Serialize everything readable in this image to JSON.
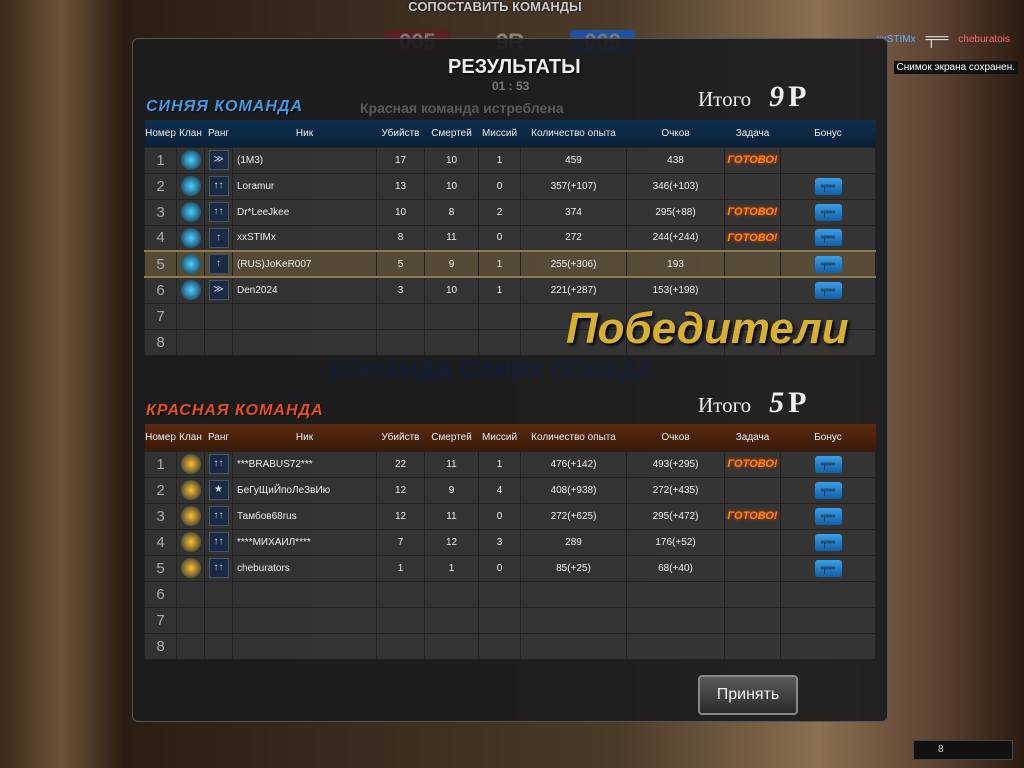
{
  "hud": {
    "match_title": "СОПОСТАВИТЬ КОМАНДЫ",
    "score_red": "005",
    "rounds": "9R",
    "score_blue": "009",
    "timer": "01 : 53",
    "killfeed_killer": "xxSTIMx",
    "killfeed_victim": "cheburatois",
    "notice": "Снимок экрана сохранен.",
    "bottom_counter": "8"
  },
  "panel": {
    "title": "РЕЗУЛЬТАТЫ",
    "eliminated_text": "Красная команда истреблена",
    "winner_text": "Победители",
    "banner_text": "КОМАНДА СИНИХ ПОБЕДА",
    "accept_label": "Принять",
    "ready_label": "ГОТОВО!"
  },
  "columns": [
    "Номер",
    "Клан",
    "Ранг",
    "Ник",
    "Убийств",
    "Смертей",
    "Миссий",
    "Количество опыта",
    "Очков",
    "Задача",
    "Бонус"
  ],
  "blue_team": {
    "name": "СИНЯЯ КОМАНДА",
    "total_label": "Итого",
    "total_value": "9",
    "total_unit": "Р",
    "color": "#3a9ee8",
    "rows": [
      {
        "n": "1",
        "nick": "(1M3)",
        "kills": "17",
        "deaths": "10",
        "missions": "1",
        "exp": "459",
        "points": "438",
        "task": true,
        "bonus": false,
        "rank": "chevron"
      },
      {
        "n": "2",
        "nick": "Loramur",
        "kills": "13",
        "deaths": "10",
        "missions": "0",
        "exp": "357(+107)",
        "points": "346(+103)",
        "task": false,
        "bonus": true,
        "rank": "arrows"
      },
      {
        "n": "3",
        "nick": "Dr*LeeJkee",
        "kills": "10",
        "deaths": "8",
        "missions": "2",
        "exp": "374",
        "points": "295(+88)",
        "task": true,
        "bonus": true,
        "rank": "arrows"
      },
      {
        "n": "4",
        "nick": "xxSTIMx",
        "kills": "8",
        "deaths": "11",
        "missions": "0",
        "exp": "272",
        "points": "244(+244)",
        "task": true,
        "bonus": true,
        "rank": "arrow"
      },
      {
        "n": "5",
        "nick": "(RUS)JoKeR007",
        "kills": "5",
        "deaths": "9",
        "missions": "1",
        "exp": "255(+306)",
        "points": "193",
        "task": false,
        "bonus": true,
        "rank": "arrow",
        "selected": true
      },
      {
        "n": "6",
        "nick": "Den2024",
        "kills": "3",
        "deaths": "10",
        "missions": "1",
        "exp": "221(+287)",
        "points": "153(+198)",
        "task": false,
        "bonus": true,
        "rank": "chevron"
      },
      {
        "n": "7"
      },
      {
        "n": "8"
      }
    ],
    "ghost_text": "(1M3)"
  },
  "red_team": {
    "name": "КРАСНАЯ КОМАНДА",
    "total_label": "Итого",
    "total_value": "5",
    "total_unit": "Р",
    "color": "#e8501a",
    "rows": [
      {
        "n": "1",
        "nick": "***BRABUS72***",
        "kills": "22",
        "deaths": "11",
        "missions": "1",
        "exp": "476(+142)",
        "points": "493(+295)",
        "task": true,
        "bonus": true,
        "rank": "arrows"
      },
      {
        "n": "2",
        "nick": "БеГуЩиЙпоЛеЗвИю",
        "kills": "12",
        "deaths": "9",
        "missions": "4",
        "exp": "408(+938)",
        "points": "272(+435)",
        "task": false,
        "bonus": true,
        "rank": "star"
      },
      {
        "n": "3",
        "nick": "Тамбов68rus",
        "kills": "12",
        "deaths": "11",
        "missions": "0",
        "exp": "272(+625)",
        "points": "295(+472)",
        "task": true,
        "bonus": true,
        "rank": "arrows"
      },
      {
        "n": "4",
        "nick": "****МИХАИЛ****",
        "kills": "7",
        "deaths": "12",
        "missions": "3",
        "exp": "289",
        "points": "176(+52)",
        "task": false,
        "bonus": true,
        "rank": "arrows"
      },
      {
        "n": "5",
        "nick": "cheburators",
        "kills": "1",
        "deaths": "1",
        "missions": "0",
        "exp": "85(+25)",
        "points": "68(+40)",
        "task": false,
        "bonus": true,
        "rank": "arrows"
      },
      {
        "n": "6"
      },
      {
        "n": "7"
      },
      {
        "n": "8"
      }
    ]
  }
}
